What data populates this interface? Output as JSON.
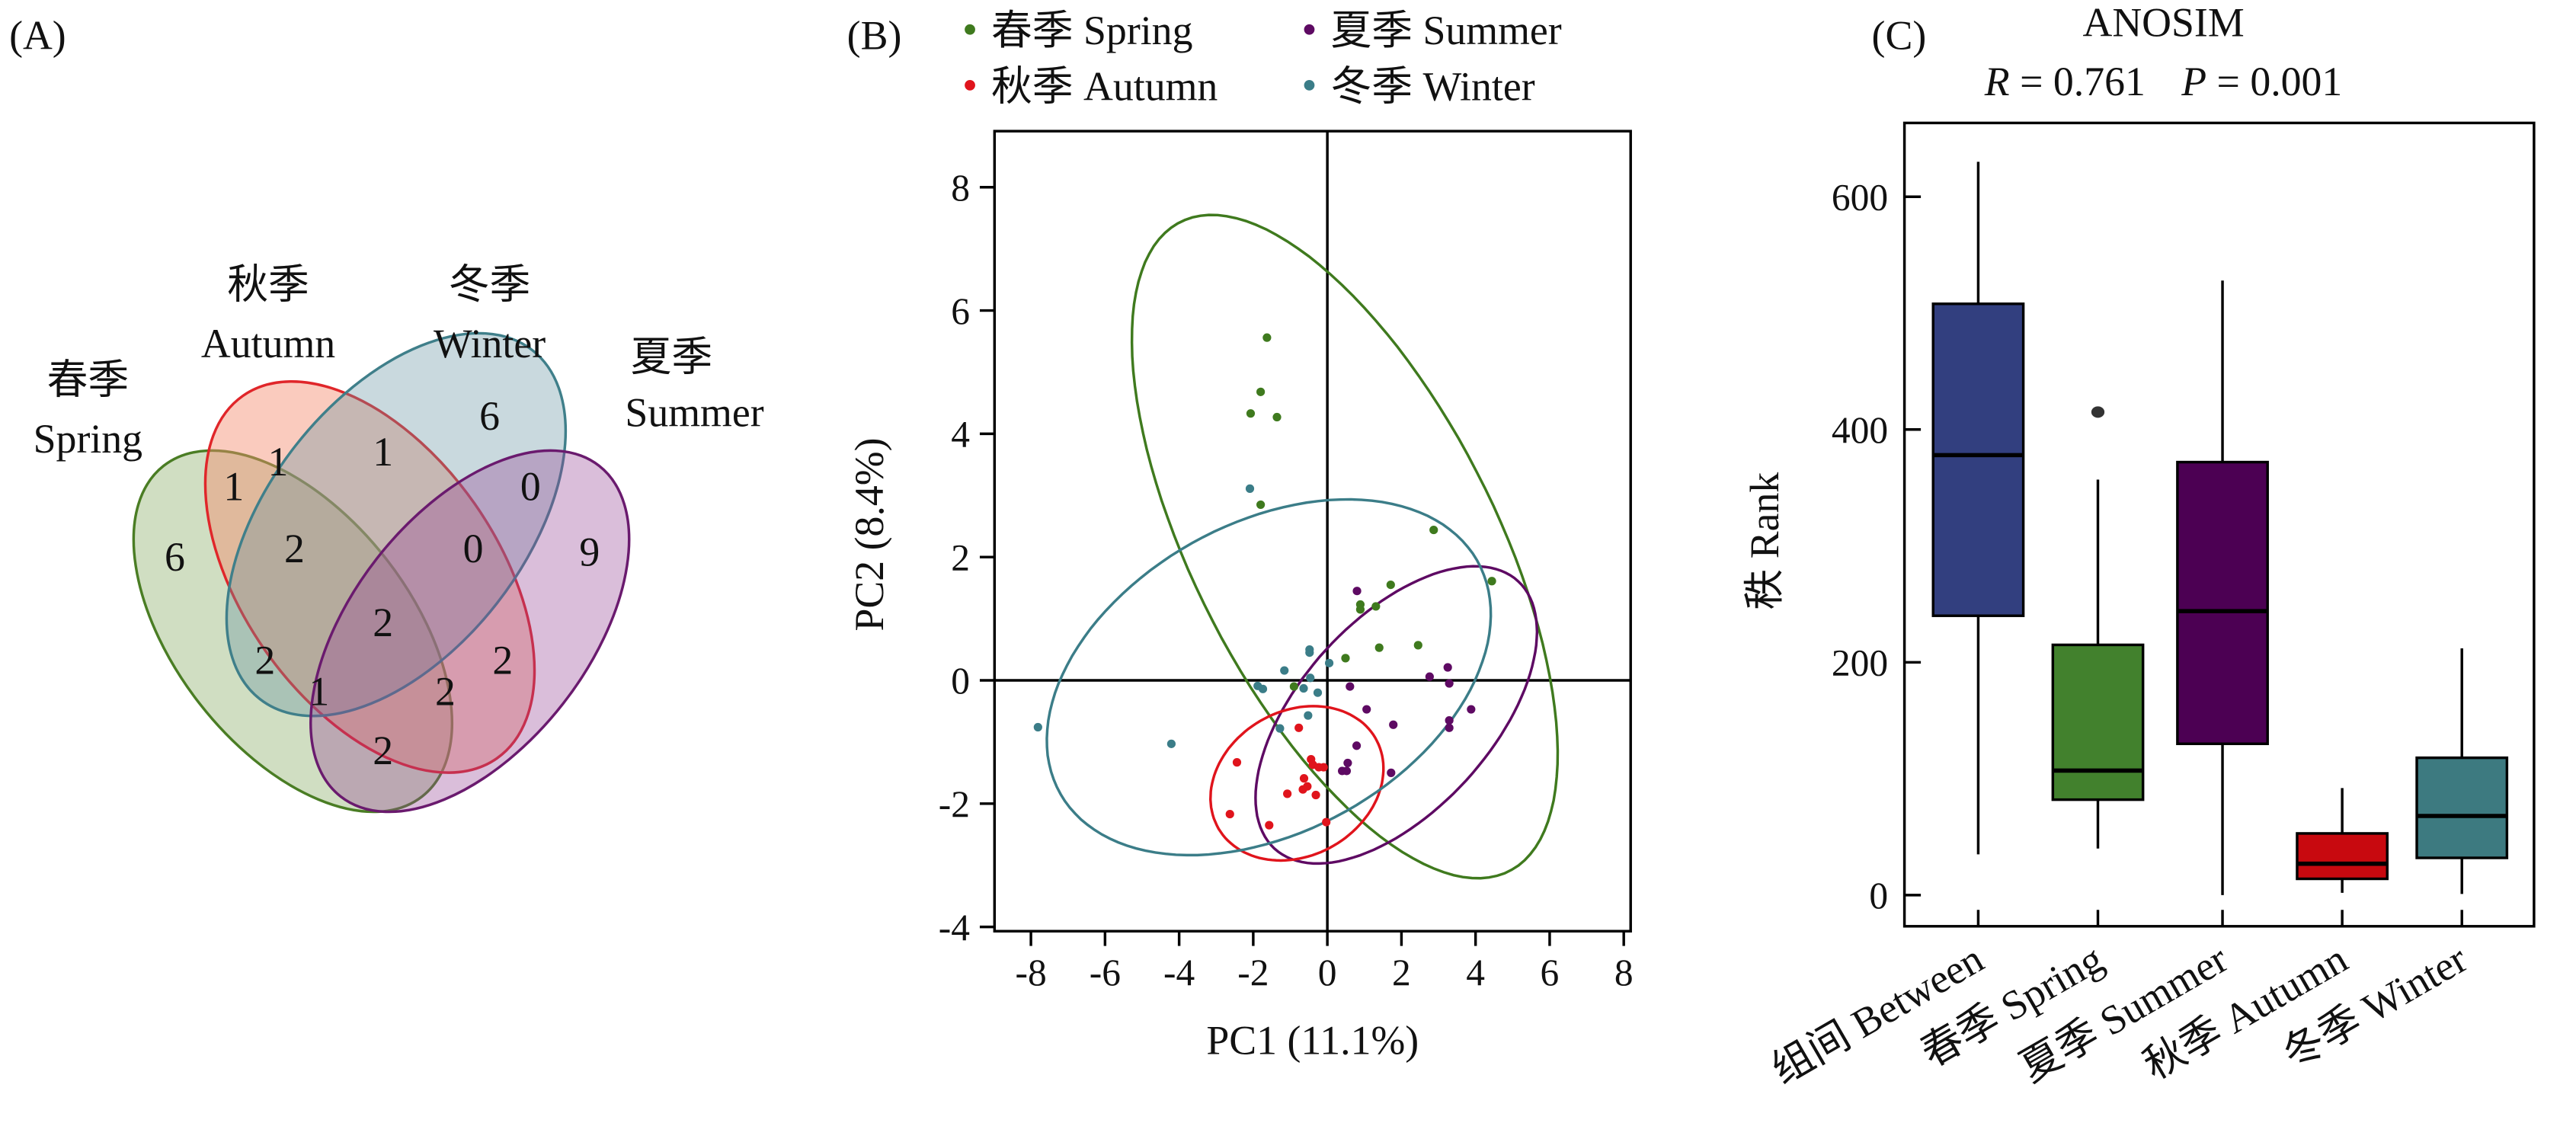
{
  "chart_data": [
    {
      "type": "venn",
      "panel_label": "(A)",
      "sets": [
        {
          "id": "S",
          "cn": "春季",
          "en": "Spring",
          "color": "#4a7d24",
          "fill": "rgba(120,160,80,0.35)"
        },
        {
          "id": "A",
          "cn": "秋季",
          "en": "Autumn",
          "color": "#e0262a",
          "fill": "rgba(245,140,110,0.45)"
        },
        {
          "id": "W",
          "cn": "冬季",
          "en": "Winter",
          "color": "#3f7f8a",
          "fill": "rgba(100,145,160,0.35)"
        },
        {
          "id": "U",
          "cn": "夏季",
          "en": "Summer",
          "color": "#6a1a6e",
          "fill": "rgba(150,70,150,0.35)"
        }
      ],
      "regions": [
        {
          "sets": "S",
          "value": 6
        },
        {
          "sets": "A",
          "value": 1
        },
        {
          "sets": "W",
          "value": 6
        },
        {
          "sets": "U",
          "value": 9
        },
        {
          "sets": "SA",
          "value": 1
        },
        {
          "sets": "AW",
          "value": 1
        },
        {
          "sets": "WU",
          "value": 0
        },
        {
          "sets": "SAW",
          "value": 2
        },
        {
          "sets": "AWU",
          "value": 0
        },
        {
          "sets": "SAWU",
          "value": 2
        },
        {
          "sets": "SW",
          "value": 2
        },
        {
          "sets": "AU",
          "value": 2
        },
        {
          "sets": "SWU",
          "value": 1
        },
        {
          "sets": "SAU",
          "value": 2
        },
        {
          "sets": "SU",
          "value": 2
        }
      ]
    },
    {
      "type": "scatter",
      "panel_label": "(B)",
      "xlabel": "PC1 (11.1%)",
      "ylabel": "PC2 (8.4%)",
      "xlim": [
        -9,
        8.1
      ],
      "ylim": [
        -4.1,
        9
      ],
      "xticks": [
        -8,
        -6,
        -4,
        -2,
        0,
        2,
        4,
        6,
        8
      ],
      "yticks": [
        -4,
        -2,
        0,
        2,
        4,
        6,
        8
      ],
      "legend_position": "top",
      "series": [
        {
          "name": "春季 Spring",
          "color": "#3f7a1e",
          "ellipse": {
            "cx": 0.47,
            "cy": 2.17,
            "a": 7.1,
            "b": 3.4,
            "angle": -42
          },
          "points": [
            [
              -1.63,
              5.56
            ],
            [
              -1.8,
              4.68
            ],
            [
              -2.07,
              4.33
            ],
            [
              -1.36,
              4.27
            ],
            [
              -1.8,
              2.85
            ],
            [
              2.87,
              2.44
            ],
            [
              4.44,
              1.61
            ],
            [
              1.71,
              1.55
            ],
            [
              0.89,
              1.23
            ],
            [
              0.89,
              1.15
            ],
            [
              1.31,
              1.2
            ],
            [
              1.4,
              0.53
            ],
            [
              2.45,
              0.57
            ],
            [
              0.49,
              0.36
            ],
            [
              -0.9,
              -0.1
            ]
          ]
        },
        {
          "name": "夏季 Summer",
          "color": "#5e0a63",
          "ellipse": {
            "cx": 1.86,
            "cy": -0.56,
            "a": 4.1,
            "b": 1.85,
            "angle": 25
          },
          "points": [
            [
              0.8,
              1.45
            ],
            [
              3.25,
              0.21
            ],
            [
              2.76,
              0.06
            ],
            [
              3.29,
              -0.05
            ],
            [
              0.61,
              -0.1
            ],
            [
              1.06,
              -0.47
            ],
            [
              3.88,
              -0.47
            ],
            [
              1.78,
              -0.72
            ],
            [
              3.29,
              -0.65
            ],
            [
              3.29,
              -0.77
            ],
            [
              0.79,
              -1.06
            ],
            [
              0.55,
              -1.34
            ],
            [
              0.4,
              -1.47
            ],
            [
              0.52,
              -1.47
            ],
            [
              1.72,
              -1.5
            ]
          ]
        },
        {
          "name": "秋季 Autumn",
          "color": "#e0141c",
          "ellipse": {
            "cx": -0.82,
            "cy": -1.67,
            "a": 2.35,
            "b": 1.22,
            "angle": 8
          },
          "points": [
            [
              -0.77,
              -0.77
            ],
            [
              -2.44,
              -1.33
            ],
            [
              -0.44,
              -1.28
            ],
            [
              -0.39,
              -1.37
            ],
            [
              -0.23,
              -1.41
            ],
            [
              -0.1,
              -1.41
            ],
            [
              -0.63,
              -1.59
            ],
            [
              -0.54,
              -1.72
            ],
            [
              -0.66,
              -1.77
            ],
            [
              -1.08,
              -1.84
            ],
            [
              -0.31,
              -1.86
            ],
            [
              -2.63,
              -2.17
            ],
            [
              -1.57,
              -2.35
            ],
            [
              -0.03,
              -2.3
            ]
          ]
        },
        {
          "name": "冬季 Winter",
          "color": "#3b7d88",
          "ellipse": {
            "cx": -1.58,
            "cy": 0.05,
            "a": 6.1,
            "b": 2.65,
            "angle": 12
          },
          "points": [
            [
              -2.09,
              3.11
            ],
            [
              -0.48,
              0.5
            ],
            [
              -0.48,
              0.45
            ],
            [
              0.05,
              0.28
            ],
            [
              -1.16,
              0.16
            ],
            [
              -0.46,
              0.04
            ],
            [
              -1.88,
              -0.09
            ],
            [
              -1.74,
              -0.14
            ],
            [
              -0.64,
              -0.13
            ],
            [
              -0.26,
              -0.2
            ],
            [
              -0.52,
              -0.57
            ],
            [
              -1.28,
              -0.78
            ],
            [
              -4.21,
              -1.03
            ],
            [
              -7.81,
              -0.76
            ]
          ]
        }
      ]
    },
    {
      "type": "box",
      "panel_label": "(C)",
      "title": "ANOSIM",
      "subtitle": {
        "r_label": "R",
        "r_text": " = 0.761",
        "p_label": "P",
        "p_text": " = 0.001"
      },
      "ylabel": "秩 Rank",
      "ylim": [
        -27,
        670
      ],
      "yticks": [
        0,
        200,
        400,
        600
      ],
      "categories": [
        "组间 Between",
        "春季 Spring",
        "夏季 Summer",
        "秋季 Autumn",
        "冬季 Winter"
      ],
      "colors": [
        "#323f7f",
        "#42812d",
        "#4c0053",
        "#c8090f",
        "#3d7a80"
      ],
      "boxes": [
        {
          "min": 35,
          "q1": 240,
          "median": 378,
          "q3": 508,
          "max": 630,
          "outliers": []
        },
        {
          "min": 40,
          "q1": 82,
          "median": 107,
          "q3": 215,
          "max": 357,
          "outliers": [
            415
          ]
        },
        {
          "min": 0,
          "q1": 130,
          "median": 244,
          "q3": 372,
          "max": 528,
          "outliers": []
        },
        {
          "min": 2,
          "q1": 14,
          "median": 27,
          "q3": 53,
          "max": 92,
          "outliers": []
        },
        {
          "min": 1,
          "q1": 32,
          "median": 68,
          "q3": 118,
          "max": 212,
          "outliers": []
        }
      ]
    }
  ]
}
